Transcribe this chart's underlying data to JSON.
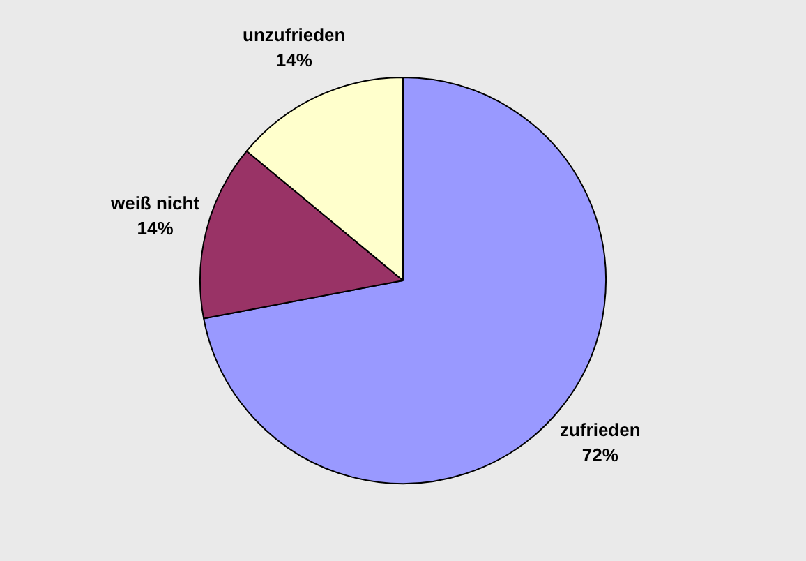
{
  "chart_data": {
    "type": "pie",
    "categories": [
      "zufrieden",
      "weiß nicht",
      "unzufrieden"
    ],
    "values": [
      72,
      14,
      14
    ],
    "value_labels": [
      "72%",
      "14%",
      "14%"
    ],
    "colors": [
      "#9999ff",
      "#993366",
      "#ffffcc"
    ],
    "legend": false
  }
}
